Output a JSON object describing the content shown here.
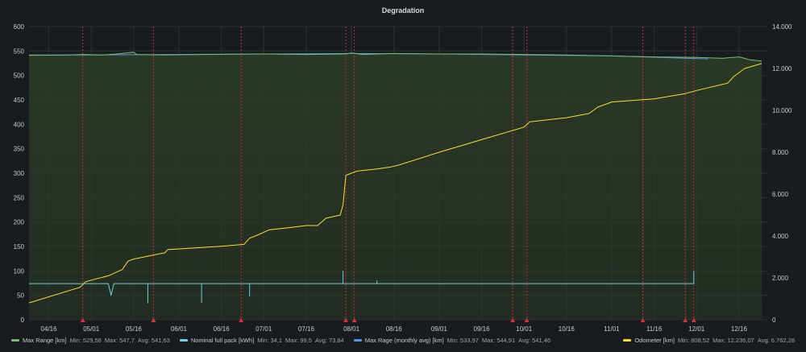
{
  "title": "Degradation",
  "colors": {
    "max_range": "#73bf69",
    "nominal_pack": "#8ab8ff",
    "nominal_pack_line": "#6ed0e0",
    "monthly_avg": "#5794f2",
    "odometer": "#fade2a",
    "event": "#e02f44",
    "fill": "#2b3a26"
  },
  "chart_data": {
    "type": "line",
    "title": "Degradation",
    "y_left": {
      "min": 0,
      "max": 600,
      "ticks": [
        "0",
        "50",
        "100",
        "150",
        "200",
        "250",
        "300",
        "350",
        "400",
        "450",
        "500",
        "550",
        "600"
      ]
    },
    "y_right": {
      "min": 0,
      "max": 14000,
      "ticks": [
        "0",
        "2.000",
        "4.000",
        "6.000",
        "8.000",
        "10.000",
        "12.000",
        "14.000"
      ]
    },
    "x_range": [
      "2021-04-09",
      "2021-12-26"
    ],
    "x_ticks": [
      {
        "date": "2021-04-16",
        "label": "04/16"
      },
      {
        "date": "2021-05-01",
        "label": "05/01"
      },
      {
        "date": "2021-05-16",
        "label": "05/16"
      },
      {
        "date": "2021-06-01",
        "label": "06/01"
      },
      {
        "date": "2021-06-16",
        "label": "06/16"
      },
      {
        "date": "2021-07-01",
        "label": "07/01"
      },
      {
        "date": "2021-07-16",
        "label": "07/16"
      },
      {
        "date": "2021-08-01",
        "label": "08/01"
      },
      {
        "date": "2021-08-16",
        "label": "08/16"
      },
      {
        "date": "2021-09-01",
        "label": "09/01"
      },
      {
        "date": "2021-09-16",
        "label": "09/16"
      },
      {
        "date": "2021-10-01",
        "label": "10/01"
      },
      {
        "date": "2021-10-16",
        "label": "10/16"
      },
      {
        "date": "2021-11-01",
        "label": "11/01"
      },
      {
        "date": "2021-11-16",
        "label": "11/16"
      },
      {
        "date": "2021-12-01",
        "label": "12/01"
      },
      {
        "date": "2021-12-16",
        "label": "12/16"
      }
    ],
    "event_markers": [
      "2021-04-28",
      "2021-05-23",
      "2021-06-23",
      "2021-07-30",
      "2021-08-02",
      "2021-09-27",
      "2021-10-02",
      "2021-11-12",
      "2021-11-27",
      "2021-11-30"
    ],
    "series": [
      {
        "name": "Max Range [km]",
        "axis": "left",
        "color": "#73bf69",
        "stats": {
          "min": "529,58",
          "max": "547,7",
          "avg": "541,63"
        },
        "points": [
          [
            "2021-04-09",
            541
          ],
          [
            "2021-04-22",
            542
          ],
          [
            "2021-04-28",
            543
          ],
          [
            "2021-05-05",
            542
          ],
          [
            "2021-05-10",
            544
          ],
          [
            "2021-05-16",
            547.7
          ],
          [
            "2021-05-17",
            543
          ],
          [
            "2021-05-26",
            542
          ],
          [
            "2021-06-10",
            543
          ],
          [
            "2021-07-01",
            544
          ],
          [
            "2021-07-16",
            543
          ],
          [
            "2021-07-30",
            544
          ],
          [
            "2021-08-01",
            546
          ],
          [
            "2021-08-05",
            543
          ],
          [
            "2021-08-16",
            545
          ],
          [
            "2021-09-01",
            544
          ],
          [
            "2021-09-16",
            544
          ],
          [
            "2021-10-01",
            543
          ],
          [
            "2021-10-16",
            542
          ],
          [
            "2021-11-01",
            540
          ],
          [
            "2021-11-16",
            538
          ],
          [
            "2021-12-01",
            537
          ],
          [
            "2021-12-10",
            535
          ],
          [
            "2021-12-16",
            538
          ],
          [
            "2021-12-20",
            532
          ],
          [
            "2021-12-24",
            529.58
          ]
        ]
      },
      {
        "name": "Nominal full pack [kWh]",
        "axis": "left",
        "color": "#6ed0e0",
        "stats": {
          "min": "34,1",
          "max": "99,5",
          "avg": "73,84"
        },
        "points": [
          [
            "2021-04-09",
            74
          ],
          [
            "2021-05-07",
            74
          ],
          [
            "2021-05-08",
            50
          ],
          [
            "2021-05-09",
            74
          ],
          [
            "2021-05-21",
            74
          ],
          [
            "2021-05-21",
            34.1
          ],
          [
            "2021-05-21",
            74
          ],
          [
            "2021-06-09",
            74
          ],
          [
            "2021-06-09",
            35
          ],
          [
            "2021-06-09",
            74
          ],
          [
            "2021-06-26",
            74
          ],
          [
            "2021-06-26",
            48
          ],
          [
            "2021-06-26",
            74
          ],
          [
            "2021-07-29",
            74
          ],
          [
            "2021-07-29",
            99.5
          ],
          [
            "2021-07-29",
            74
          ],
          [
            "2021-08-10",
            74
          ],
          [
            "2021-08-10",
            80
          ],
          [
            "2021-08-10",
            74
          ],
          [
            "2021-11-30",
            74
          ],
          [
            "2021-11-30",
            99
          ],
          [
            "2021-11-30",
            74
          ]
        ]
      },
      {
        "name": "Max Rage (monthly avg) [km]",
        "axis": "left",
        "color": "#5794f2",
        "stats": {
          "min": "533,97",
          "max": "544,91",
          "avg": "541,46"
        },
        "points": [
          [
            "2021-04-09",
            542
          ],
          [
            "2021-05-01",
            542
          ],
          [
            "2021-06-01",
            543
          ],
          [
            "2021-07-01",
            544
          ],
          [
            "2021-08-01",
            544.91
          ],
          [
            "2021-09-01",
            544
          ],
          [
            "2021-10-01",
            542
          ],
          [
            "2021-11-01",
            540
          ],
          [
            "2021-12-05",
            533.97
          ]
        ]
      },
      {
        "name": "Odometer [km]",
        "axis": "right",
        "color": "#fade2a",
        "stats": {
          "min": "808,52",
          "max": "12.236,07",
          "avg": "6.762,28"
        },
        "points": [
          [
            "2021-04-09",
            808.52
          ],
          [
            "2021-04-27",
            1550
          ],
          [
            "2021-04-29",
            1820
          ],
          [
            "2021-05-07",
            2100
          ],
          [
            "2021-05-12",
            2400
          ],
          [
            "2021-05-14",
            2800
          ],
          [
            "2021-05-16",
            2900
          ],
          [
            "2021-05-27",
            3200
          ],
          [
            "2021-05-28",
            3350
          ],
          [
            "2021-06-15",
            3500
          ],
          [
            "2021-06-24",
            3600
          ],
          [
            "2021-06-26",
            3900
          ],
          [
            "2021-06-28",
            4000
          ],
          [
            "2021-07-03",
            4300
          ],
          [
            "2021-07-10",
            4400
          ],
          [
            "2021-07-16",
            4500
          ],
          [
            "2021-07-20",
            4500
          ],
          [
            "2021-07-23",
            4850
          ],
          [
            "2021-07-28",
            5000
          ],
          [
            "2021-07-29",
            5500
          ],
          [
            "2021-07-30",
            6900
          ],
          [
            "2021-08-03",
            7100
          ],
          [
            "2021-08-10",
            7200
          ],
          [
            "2021-08-15",
            7300
          ],
          [
            "2021-08-18",
            7400
          ],
          [
            "2021-09-01",
            8000
          ],
          [
            "2021-09-16",
            8600
          ],
          [
            "2021-10-01",
            9200
          ],
          [
            "2021-10-03",
            9450
          ],
          [
            "2021-10-16",
            9650
          ],
          [
            "2021-10-24",
            9850
          ],
          [
            "2021-10-27",
            10150
          ],
          [
            "2021-11-01",
            10400
          ],
          [
            "2021-11-16",
            10550
          ],
          [
            "2021-11-27",
            10800
          ],
          [
            "2021-12-01",
            10950
          ],
          [
            "2021-12-12",
            11300
          ],
          [
            "2021-12-14",
            11600
          ],
          [
            "2021-12-18",
            12000
          ],
          [
            "2021-12-24",
            12236.07
          ]
        ]
      }
    ]
  },
  "legend": {
    "left": [
      {
        "label": "Max Range [km]",
        "min": "Min: 529,58",
        "max": "Max: 547,7",
        "avg": "Avg: 541,63"
      },
      {
        "label": "Nominal full pack [kWh]",
        "min": "Min: 34,1",
        "max": "Max: 99,5",
        "avg": "Avg: 73,84"
      },
      {
        "label": "Max Rage (monthly avg) [km]",
        "min": "Min: 533,97",
        "max": "Max: 544,91",
        "avg": "Avg: 541,46"
      }
    ],
    "right": [
      {
        "label": "Odometer [km]",
        "min": "Min: 808,52",
        "max": "Max: 12.236,07",
        "avg": "Avg: 6.762,28"
      }
    ]
  }
}
